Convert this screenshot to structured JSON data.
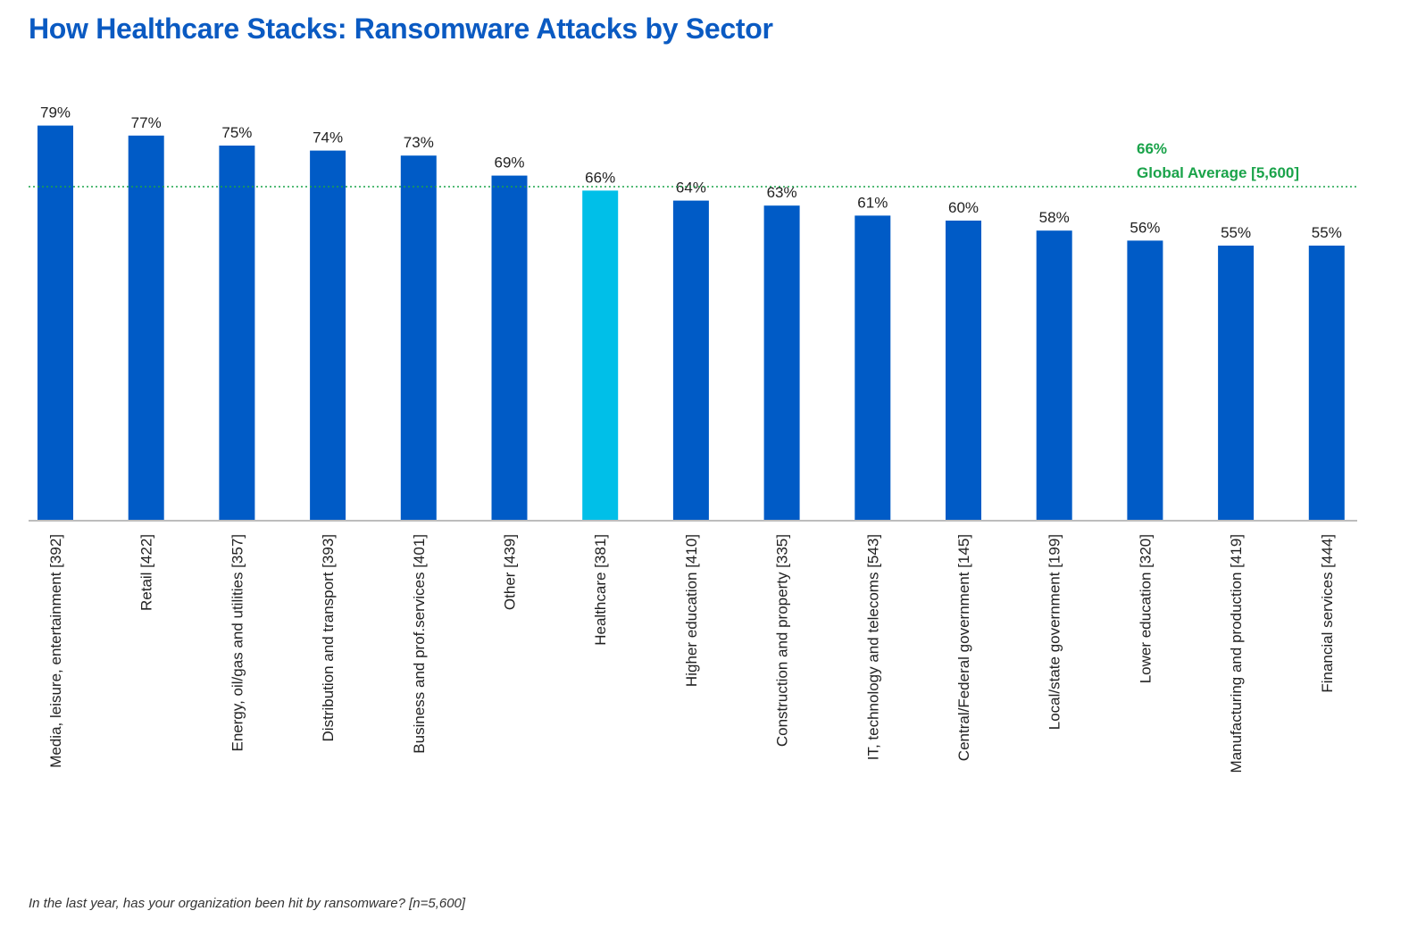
{
  "chart_data": {
    "type": "bar",
    "title": "How Healthcare Stacks: Ransomware Attacks by Sector",
    "categories": [
      "Media, leisure, entertainment [392]",
      "Retail [422]",
      "Energy, oil/gas and utilities [357]",
      "Distribution and transport [393]",
      "Business and prof.services [401]",
      "Other [439]",
      "Healthcare [381]",
      "Higher education [410]",
      "Construction and property [335]",
      "IT, technology and telecoms [543]",
      "Central/Federal government [145]",
      "Local/state government [199]",
      "Lower education [320]",
      "Manufacturing and production [419]",
      "Financial services [444]"
    ],
    "values": [
      79,
      77,
      75,
      74,
      73,
      69,
      66,
      64,
      63,
      61,
      60,
      58,
      56,
      55,
      55
    ],
    "value_labels": [
      "79%",
      "77%",
      "75%",
      "74%",
      "73%",
      "69%",
      "66%",
      "64%",
      "63%",
      "61%",
      "60%",
      "58%",
      "56%",
      "55%",
      "55%"
    ],
    "highlight_index": 6,
    "reference_line": {
      "value": 66,
      "value_label": "66%",
      "label": "Global Average [5,600]"
    },
    "ylim": [
      0,
      100
    ],
    "xlabel": "",
    "ylabel": "",
    "grid": false,
    "footnote": "In the last year, has your organization been hit by ransomware? [n=5,600]",
    "colors": {
      "bar": "#005bc6",
      "highlight": "#00bfe8",
      "reference": "#1aa34a",
      "axis": "#bdbdbd"
    }
  }
}
